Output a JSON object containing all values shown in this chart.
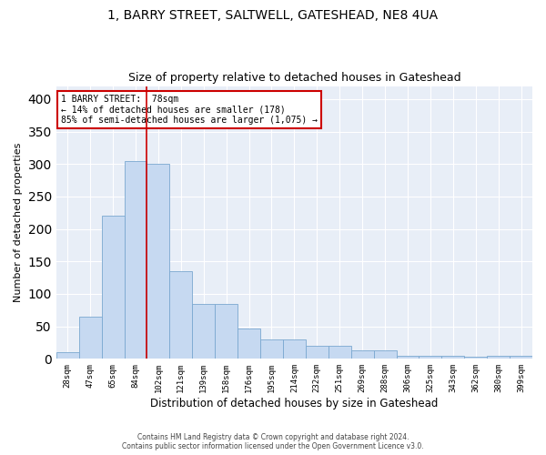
{
  "title1": "1, BARRY STREET, SALTWELL, GATESHEAD, NE8 4UA",
  "title2": "Size of property relative to detached houses in Gateshead",
  "xlabel": "Distribution of detached houses by size in Gateshead",
  "ylabel": "Number of detached properties",
  "categories": [
    "28sqm",
    "47sqm",
    "65sqm",
    "84sqm",
    "102sqm",
    "121sqm",
    "139sqm",
    "158sqm",
    "176sqm",
    "195sqm",
    "214sqm",
    "232sqm",
    "251sqm",
    "269sqm",
    "288sqm",
    "306sqm",
    "325sqm",
    "343sqm",
    "362sqm",
    "380sqm",
    "399sqm"
  ],
  "values": [
    10,
    65,
    220,
    305,
    300,
    135,
    85,
    85,
    47,
    30,
    30,
    20,
    20,
    13,
    13,
    5,
    5,
    4,
    3,
    4,
    5
  ],
  "bar_color": "#c6d9f1",
  "bar_edge_color": "#7aa8d0",
  "red_line_x": 3.5,
  "annotation_title": "1 BARRY STREET:  78sqm",
  "annotation_line1": "← 14% of detached houses are smaller (178)",
  "annotation_line2": "85% of semi-detached houses are larger (1,075) →",
  "annotation_box_color": "#ffffff",
  "annotation_box_edge": "#cc0000",
  "footer1": "Contains HM Land Registry data © Crown copyright and database right 2024.",
  "footer2": "Contains public sector information licensed under the Open Government Licence v3.0.",
  "ylim": [
    0,
    420
  ],
  "background_color": "#e8eef7",
  "grid_color": "#ffffff",
  "title1_fontsize": 10,
  "title2_fontsize": 9,
  "xlabel_fontsize": 8.5,
  "ylabel_fontsize": 8
}
